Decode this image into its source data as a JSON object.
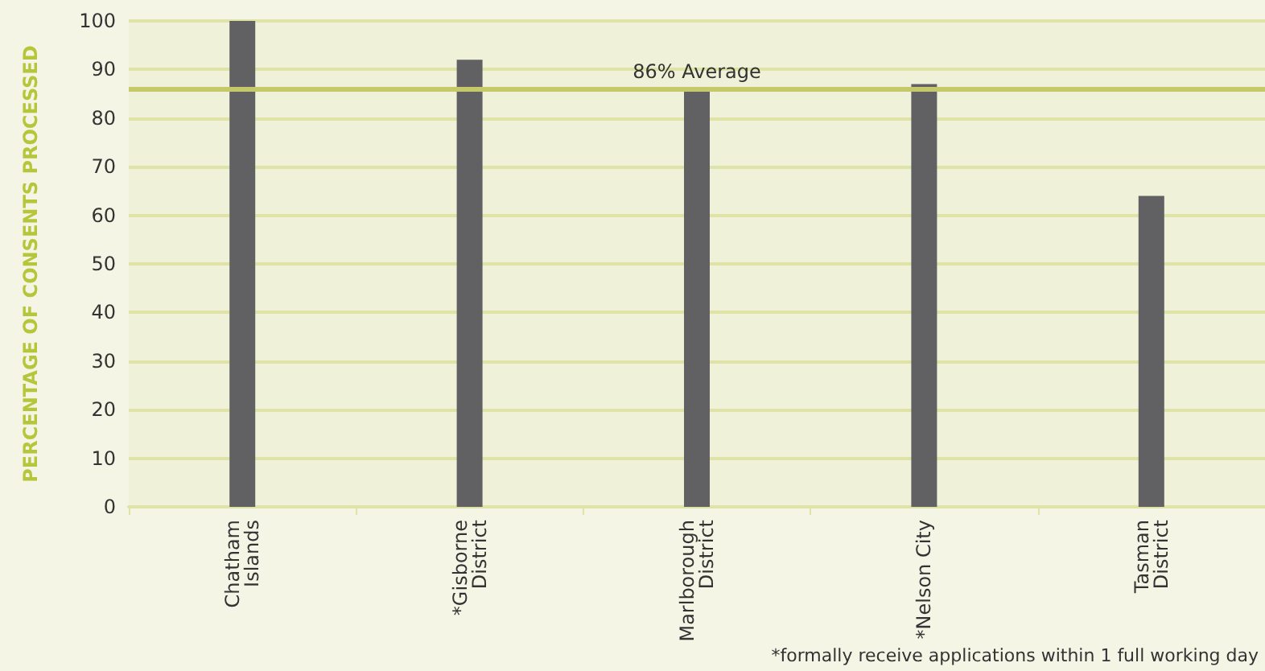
{
  "chart_data": {
    "type": "bar",
    "ylabel": "PERCENTAGE OF CONSENTS PROCESSED",
    "categories": [
      "Chatham\nIslands",
      "*Gisborne\nDistrict",
      "Marlborough\nDistrict",
      "*Nelson City",
      "Tasman\nDistrict"
    ],
    "values": [
      100,
      92,
      86,
      87,
      64
    ],
    "color": "#616163",
    "ylim": [
      0,
      100
    ],
    "yticks": [
      0,
      10,
      20,
      30,
      40,
      50,
      60,
      70,
      80,
      90,
      100
    ],
    "grid": "y",
    "ref_lines": [
      {
        "axis": "y",
        "value": 86,
        "label": "86% Average",
        "color": "#c5c96a"
      }
    ],
    "annotations": [
      "*formally receive applications within 1 full working day"
    ]
  }
}
